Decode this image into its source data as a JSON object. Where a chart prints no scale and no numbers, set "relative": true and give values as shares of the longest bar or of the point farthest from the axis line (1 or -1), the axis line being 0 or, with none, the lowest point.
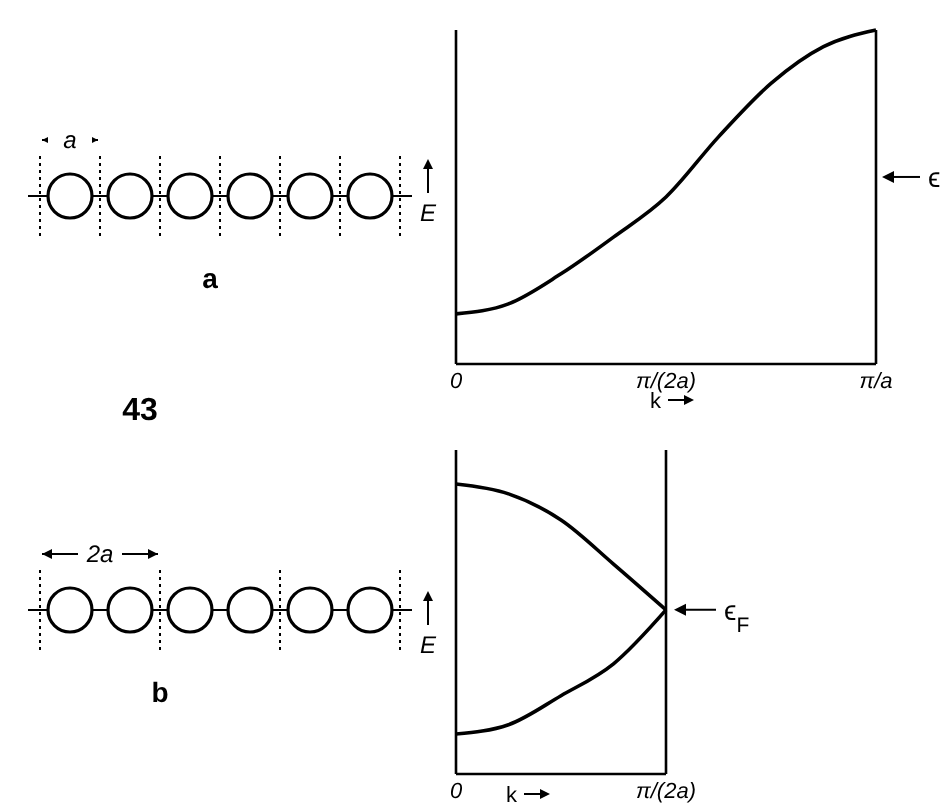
{
  "chart_data": [
    {
      "type": "line",
      "xlabel": "k",
      "ylabel": "E",
      "relative": true,
      "categories": [
        "0",
        null,
        null,
        null,
        "π/(2a)",
        null,
        null,
        null,
        "π/a"
      ],
      "series": [
        {
          "color": "#000000",
          "values": [
            0.15,
            0.18,
            0.27,
            0.38,
            0.5,
            0.68,
            0.84,
            0.95,
            1
          ]
        }
      ],
      "annotations": [
        "a",
        "ϵ",
        "a",
        "43"
      ]
    },
    {
      "type": "line",
      "xlabel": "k",
      "ylabel": "E",
      "relative": true,
      "categories": [
        "0",
        null,
        null,
        null,
        "π/(2a)"
      ],
      "series": [
        {
          "color": "#000000",
          "values": [
            1,
            0.966,
            0.876,
            0.724,
            0.566
          ]
        },
        {
          "color": "#000000",
          "values": [
            0.138,
            0.17,
            0.27,
            0.38,
            0.566
          ]
        }
      ],
      "annotations": [
        "2a",
        "b",
        {
          "text": "ϵ$_{F}$",
          "x": "π/(2a)",
          "y": 0.566
        }
      ]
    }
  ]
}
